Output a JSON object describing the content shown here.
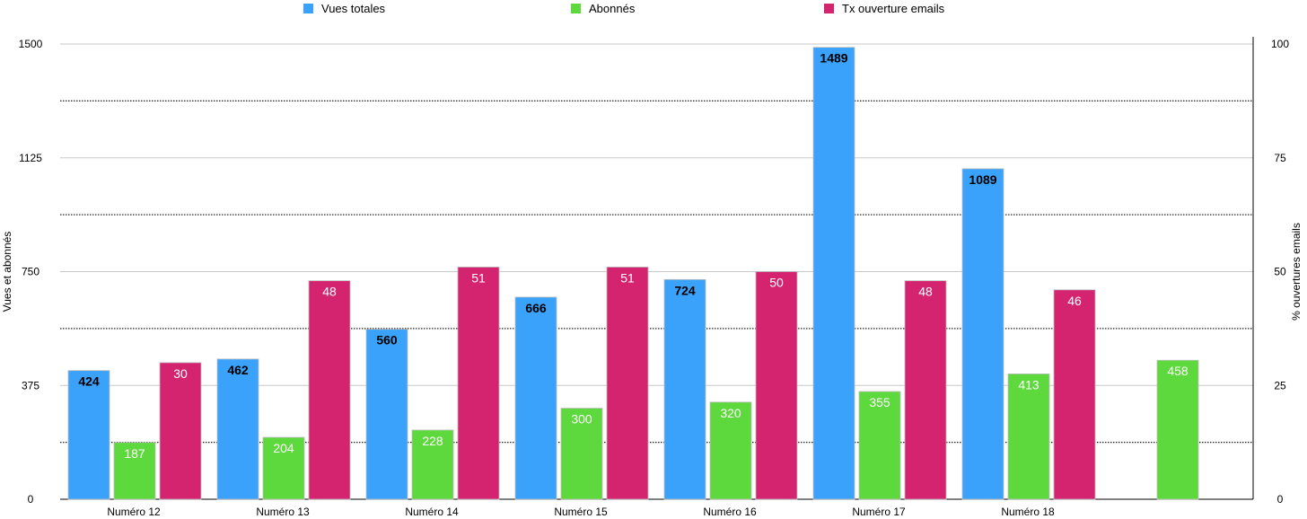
{
  "chart_data": {
    "type": "bar",
    "categories": [
      "Numéro 12",
      "Numéro 13",
      "Numéro 14",
      "Numéro 15",
      "Numéro 16",
      "Numéro 17",
      "Numéro 18",
      ""
    ],
    "series": [
      {
        "name": "Vues totales",
        "axis": "left",
        "color": "#3ba2fb",
        "label_color": "#000000",
        "label_weight": "bold",
        "values": [
          424,
          462,
          560,
          666,
          724,
          1489,
          1089,
          null
        ]
      },
      {
        "name": "Abonnés",
        "axis": "left",
        "color": "#5ed93d",
        "label_color": "#ffffff",
        "label_weight": "normal",
        "values": [
          187,
          204,
          228,
          300,
          320,
          355,
          413,
          458
        ]
      },
      {
        "name": "Tx ouverture emails",
        "axis": "right",
        "color": "#d42470",
        "label_color": "#ffffff",
        "label_weight": "normal",
        "values": [
          30,
          48,
          51,
          51,
          50,
          48,
          46,
          null
        ]
      }
    ],
    "ylabel": "Vues et abonnés",
    "ylabel_right": "% ouvertures emails",
    "ylim": [
      0,
      1500
    ],
    "ylim_right": [
      0,
      100
    ],
    "yticks": [
      "0",
      "375",
      "750",
      "1125",
      "1500"
    ],
    "yticks_right": [
      "0",
      "25",
      "50",
      "75",
      "100"
    ],
    "grid": true,
    "legend": "top"
  }
}
